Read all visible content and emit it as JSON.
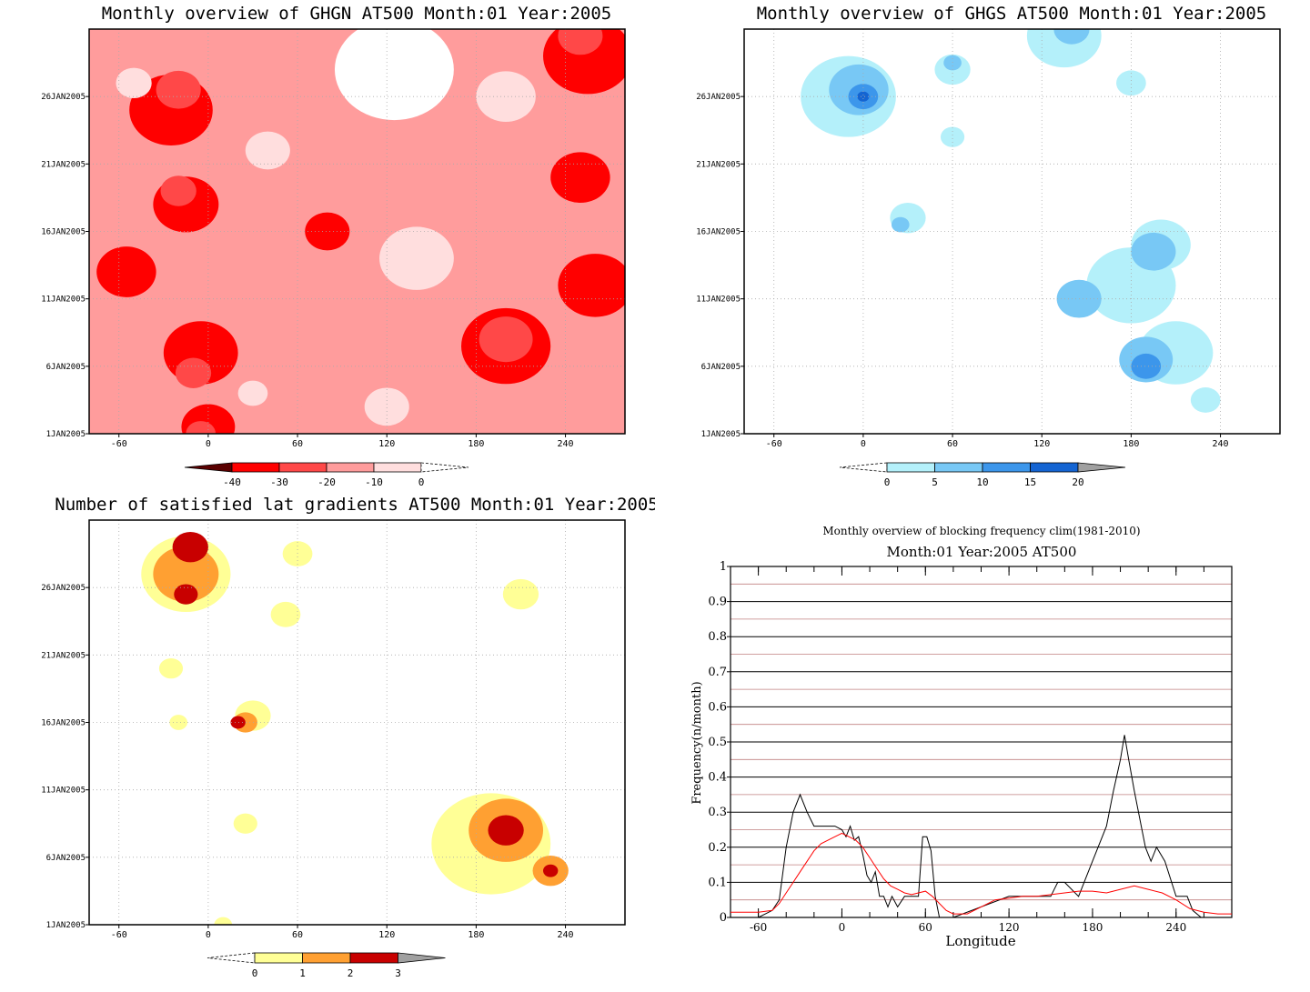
{
  "chart_data": [
    {
      "type": "heatmap",
      "title": "Monthly overview of GHGN AT500 Month:01 Year:2005",
      "x_ticks": [
        "-60",
        "0",
        "60",
        "120",
        "180",
        "240"
      ],
      "x_tick_values": [
        -60,
        0,
        60,
        120,
        180,
        240
      ],
      "y_ticks": [
        "1JAN2005",
        "6JAN2005",
        "11JAN2005",
        "16JAN2005",
        "21JAN2005",
        "26JAN2005"
      ],
      "y_tick_values": [
        1,
        6,
        11,
        16,
        21,
        26
      ],
      "xlim": [
        -80,
        280
      ],
      "ylim": [
        1,
        31
      ],
      "colorbar": {
        "labels": [
          "-40",
          "-30",
          "-20",
          "-10",
          "0"
        ],
        "colors": [
          "#5a0000",
          "#ff0000",
          "#ff4848",
          "#ff9c9c",
          "#ffdede",
          "#ffffff"
        ]
      },
      "blobs": [
        {
          "x": 200,
          "y": 7.5,
          "r": 30,
          "level": 1
        },
        {
          "x": 200,
          "y": 8,
          "r": 18,
          "level": 2
        },
        {
          "x": -5,
          "y": 7,
          "r": 25,
          "level": 1
        },
        {
          "x": -10,
          "y": 5.5,
          "r": 12,
          "level": 2
        },
        {
          "x": -25,
          "y": 25,
          "r": 28,
          "level": 1
        },
        {
          "x": -20,
          "y": 26.5,
          "r": 15,
          "level": 2
        },
        {
          "x": -15,
          "y": 18,
          "r": 22,
          "level": 1
        },
        {
          "x": -20,
          "y": 19,
          "r": 12,
          "level": 2
        },
        {
          "x": 255,
          "y": 29,
          "r": 30,
          "level": 1
        },
        {
          "x": 250,
          "y": 30.5,
          "r": 15,
          "level": 2
        },
        {
          "x": -55,
          "y": 13,
          "r": 20,
          "level": 1
        },
        {
          "x": 0,
          "y": 1.5,
          "r": 18,
          "level": 1
        },
        {
          "x": -5,
          "y": 1,
          "r": 10,
          "level": 2
        },
        {
          "x": 260,
          "y": 12,
          "r": 25,
          "level": 1
        },
        {
          "x": 250,
          "y": 20,
          "r": 20,
          "level": 1
        },
        {
          "x": 80,
          "y": 16,
          "r": 15,
          "level": 1
        },
        {
          "x": 40,
          "y": 2,
          "r": 25,
          "level": 3
        },
        {
          "x": 125,
          "y": 28,
          "r": 40,
          "level": 5
        },
        {
          "x": 140,
          "y": 14,
          "r": 25,
          "level": 4
        },
        {
          "x": 40,
          "y": 22,
          "r": 15,
          "level": 4
        },
        {
          "x": -50,
          "y": 27,
          "r": 12,
          "level": 4
        },
        {
          "x": 120,
          "y": 3,
          "r": 15,
          "level": 4
        },
        {
          "x": 30,
          "y": 4,
          "r": 10,
          "level": 4
        },
        {
          "x": 200,
          "y": 26,
          "r": 20,
          "level": 4
        }
      ]
    },
    {
      "type": "heatmap",
      "title": "Monthly overview of GHGS AT500 Month:01 Year:2005",
      "x_ticks": [
        "-60",
        "0",
        "60",
        "120",
        "180",
        "240"
      ],
      "x_tick_values": [
        -60,
        0,
        60,
        120,
        180,
        240
      ],
      "y_ticks": [
        "1JAN2005",
        "6JAN2005",
        "11JAN2005",
        "16JAN2005",
        "21JAN2005",
        "26JAN2005"
      ],
      "y_tick_values": [
        1,
        6,
        11,
        16,
        21,
        26
      ],
      "xlim": [
        -80,
        280
      ],
      "ylim": [
        1,
        31
      ],
      "colorbar": {
        "labels": [
          "0",
          "5",
          "10",
          "15",
          "20"
        ],
        "colors": [
          "#ffffff",
          "#b4f0fa",
          "#78c8f5",
          "#3c96eb",
          "#1464d2",
          "#a0a0a0"
        ]
      },
      "blobs": [
        {
          "x": -10,
          "y": 26,
          "r": 32,
          "level": 1
        },
        {
          "x": -3,
          "y": 26.5,
          "r": 20,
          "level": 2
        },
        {
          "x": 0,
          "y": 26,
          "r": 10,
          "level": 3
        },
        {
          "x": 0,
          "y": 26,
          "r": 4,
          "level": 4
        },
        {
          "x": 60,
          "y": 28,
          "r": 12,
          "level": 1
        },
        {
          "x": 60,
          "y": 28.5,
          "r": 6,
          "level": 2
        },
        {
          "x": 135,
          "y": 30.5,
          "r": 25,
          "level": 1
        },
        {
          "x": 140,
          "y": 31,
          "r": 12,
          "level": 2
        },
        {
          "x": 180,
          "y": 12,
          "r": 30,
          "level": 1
        },
        {
          "x": 200,
          "y": 15,
          "r": 20,
          "level": 1
        },
        {
          "x": 210,
          "y": 7,
          "r": 25,
          "level": 1
        },
        {
          "x": 145,
          "y": 11,
          "r": 15,
          "level": 2
        },
        {
          "x": 195,
          "y": 14.5,
          "r": 15,
          "level": 2
        },
        {
          "x": 190,
          "y": 6.5,
          "r": 18,
          "level": 2
        },
        {
          "x": 190,
          "y": 6,
          "r": 10,
          "level": 3
        },
        {
          "x": 230,
          "y": 3.5,
          "r": 10,
          "level": 1
        },
        {
          "x": 30,
          "y": 17,
          "r": 12,
          "level": 1
        },
        {
          "x": 25,
          "y": 16.5,
          "r": 6,
          "level": 2
        },
        {
          "x": 60,
          "y": 23,
          "r": 8,
          "level": 1
        },
        {
          "x": 180,
          "y": 27,
          "r": 10,
          "level": 1
        }
      ]
    },
    {
      "type": "heatmap",
      "title": "Number of satisfied lat gradients AT500 Month:01 Year:2005",
      "x_ticks": [
        "-60",
        "0",
        "60",
        "120",
        "180",
        "240"
      ],
      "x_tick_values": [
        -60,
        0,
        60,
        120,
        180,
        240
      ],
      "y_ticks": [
        "1JAN2005",
        "6JAN2005",
        "11JAN2005",
        "16JAN2005",
        "21JAN2005",
        "26JAN2005"
      ],
      "y_tick_values": [
        1,
        6,
        11,
        16,
        21,
        26
      ],
      "xlim": [
        -80,
        280
      ],
      "ylim": [
        1,
        31
      ],
      "colorbar": {
        "labels": [
          "0",
          "1",
          "2",
          "3"
        ],
        "colors": [
          "#ffffff",
          "#ffff96",
          "#ffa032",
          "#c80000",
          "#a0a0a0"
        ]
      },
      "blobs": [
        {
          "x": -15,
          "y": 27,
          "r": 30,
          "level": 1
        },
        {
          "x": -15,
          "y": 27,
          "r": 22,
          "level": 2
        },
        {
          "x": -12,
          "y": 29,
          "r": 12,
          "level": 3
        },
        {
          "x": -15,
          "y": 25.5,
          "r": 8,
          "level": 3
        },
        {
          "x": 60,
          "y": 28.5,
          "r": 10,
          "level": 1
        },
        {
          "x": 52,
          "y": 24,
          "r": 10,
          "level": 1
        },
        {
          "x": 190,
          "y": 7,
          "r": 40,
          "level": 1
        },
        {
          "x": 200,
          "y": 8,
          "r": 25,
          "level": 2
        },
        {
          "x": 200,
          "y": 8,
          "r": 12,
          "level": 3
        },
        {
          "x": 230,
          "y": 5,
          "r": 12,
          "level": 2
        },
        {
          "x": 230,
          "y": 5,
          "r": 5,
          "level": 3
        },
        {
          "x": 30,
          "y": 16.5,
          "r": 12,
          "level": 1
        },
        {
          "x": 25,
          "y": 16,
          "r": 8,
          "level": 2
        },
        {
          "x": 20,
          "y": 16,
          "r": 5,
          "level": 3
        },
        {
          "x": -25,
          "y": 20,
          "r": 8,
          "level": 1
        },
        {
          "x": -20,
          "y": 16,
          "r": 6,
          "level": 1
        },
        {
          "x": 25,
          "y": 8.5,
          "r": 8,
          "level": 1
        },
        {
          "x": 210,
          "y": 25.5,
          "r": 12,
          "level": 1
        },
        {
          "x": 10,
          "y": 1,
          "r": 6,
          "level": 1
        }
      ]
    },
    {
      "type": "line",
      "title": "Monthly overview of blocking frequency clim(1981-2010)",
      "subtitle": "Month:01 Year:2005  AT500",
      "xlabel": "Longitude",
      "ylabel": "Frequency(n/month)",
      "xlim": [
        -80,
        280
      ],
      "ylim": [
        0,
        1
      ],
      "x_ticks": [
        "-60",
        "0",
        "60",
        "120",
        "180",
        "240"
      ],
      "x_tick_values": [
        -60,
        0,
        60,
        120,
        180,
        240
      ],
      "y_ticks": [
        "0",
        "0.1",
        "0.2",
        "0.3",
        "0.4",
        "0.5",
        "0.6",
        "0.7",
        "0.8",
        "0.9",
        "1"
      ],
      "y_tick_values": [
        0,
        0.1,
        0.2,
        0.3,
        0.4,
        0.5,
        0.6,
        0.7,
        0.8,
        0.9,
        1
      ],
      "series": [
        {
          "color": "#000000",
          "x": [
            -80,
            -60,
            -50,
            -45,
            -40,
            -35,
            -30,
            -25,
            -20,
            -15,
            -10,
            -5,
            0,
            3,
            6,
            9,
            12,
            15,
            18,
            21,
            24,
            27,
            30,
            33,
            36,
            40,
            45,
            50,
            55,
            58,
            61,
            64,
            67,
            70,
            75,
            80,
            120,
            150,
            155,
            160,
            170,
            180,
            190,
            195,
            200,
            203,
            206,
            210,
            215,
            218,
            222,
            226,
            232,
            240,
            248,
            252,
            258,
            280
          ],
          "y": [
            0,
            0,
            0.02,
            0.05,
            0.2,
            0.3,
            0.35,
            0.3,
            0.26,
            0.26,
            0.26,
            0.26,
            0.25,
            0.23,
            0.26,
            0.22,
            0.23,
            0.18,
            0.12,
            0.1,
            0.13,
            0.06,
            0.06,
            0.03,
            0.06,
            0.03,
            0.06,
            0.06,
            0.06,
            0.23,
            0.23,
            0.19,
            0.06,
            0.0,
            0.0,
            0.0,
            0.06,
            0.06,
            0.1,
            0.1,
            0.06,
            0.16,
            0.26,
            0.36,
            0.45,
            0.52,
            0.45,
            0.36,
            0.26,
            0.2,
            0.16,
            0.2,
            0.16,
            0.06,
            0.06,
            0.02,
            0.0,
            0.0
          ]
        },
        {
          "color": "#ff0000",
          "x": [
            -80,
            -60,
            -50,
            -45,
            -40,
            -35,
            -30,
            -25,
            -20,
            -15,
            -10,
            -5,
            0,
            5,
            10,
            15,
            20,
            25,
            30,
            35,
            40,
            45,
            50,
            55,
            60,
            65,
            70,
            75,
            80,
            90,
            100,
            110,
            120,
            130,
            140,
            150,
            160,
            170,
            180,
            190,
            200,
            210,
            220,
            230,
            240,
            250,
            260,
            270,
            280
          ],
          "y": [
            0.015,
            0.015,
            0.02,
            0.04,
            0.07,
            0.1,
            0.13,
            0.16,
            0.19,
            0.21,
            0.22,
            0.23,
            0.24,
            0.23,
            0.22,
            0.2,
            0.17,
            0.14,
            0.11,
            0.09,
            0.08,
            0.07,
            0.065,
            0.07,
            0.075,
            0.06,
            0.04,
            0.02,
            0.01,
            0.01,
            0.03,
            0.05,
            0.055,
            0.06,
            0.06,
            0.065,
            0.07,
            0.075,
            0.075,
            0.07,
            0.08,
            0.09,
            0.08,
            0.07,
            0.05,
            0.025,
            0.015,
            0.01,
            0.01
          ]
        }
      ]
    }
  ]
}
